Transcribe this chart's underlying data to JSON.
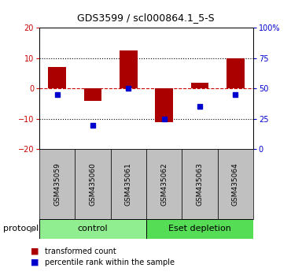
{
  "title": "GDS3599 / scl000864.1_5-S",
  "samples": [
    "GSM435059",
    "GSM435060",
    "GSM435061",
    "GSM435062",
    "GSM435063",
    "GSM435064"
  ],
  "red_bars": [
    7.0,
    -4.0,
    12.5,
    -11.0,
    2.0,
    10.0
  ],
  "blue_squares_pct": [
    45,
    20,
    50,
    25,
    35,
    45
  ],
  "ylim_left": [
    -20,
    20
  ],
  "ylim_right": [
    0,
    100
  ],
  "yticks_left": [
    -20,
    -10,
    0,
    10,
    20
  ],
  "yticks_right": [
    0,
    25,
    50,
    75,
    100
  ],
  "ytick_labels_right": [
    "0",
    "25",
    "50",
    "75",
    "100%"
  ],
  "groups": [
    {
      "label": "control",
      "indices": [
        0,
        1,
        2
      ],
      "color": "#90EE90"
    },
    {
      "label": "Eset depletion",
      "indices": [
        3,
        4,
        5
      ],
      "color": "#55DD55"
    }
  ],
  "protocol_label": "protocol",
  "bar_color": "#AA0000",
  "square_color": "#0000CC",
  "zero_line_color": "#CC0000",
  "dotted_line_color": "#000000",
  "bg_color": "#FFFFFF",
  "plot_bg": "#FFFFFF",
  "axis_color_left": "#CC0000",
  "axis_color_right": "#0000CC",
  "sample_bg_color": "#C0C0C0",
  "legend_items": [
    "transformed count",
    "percentile rank within the sample"
  ]
}
